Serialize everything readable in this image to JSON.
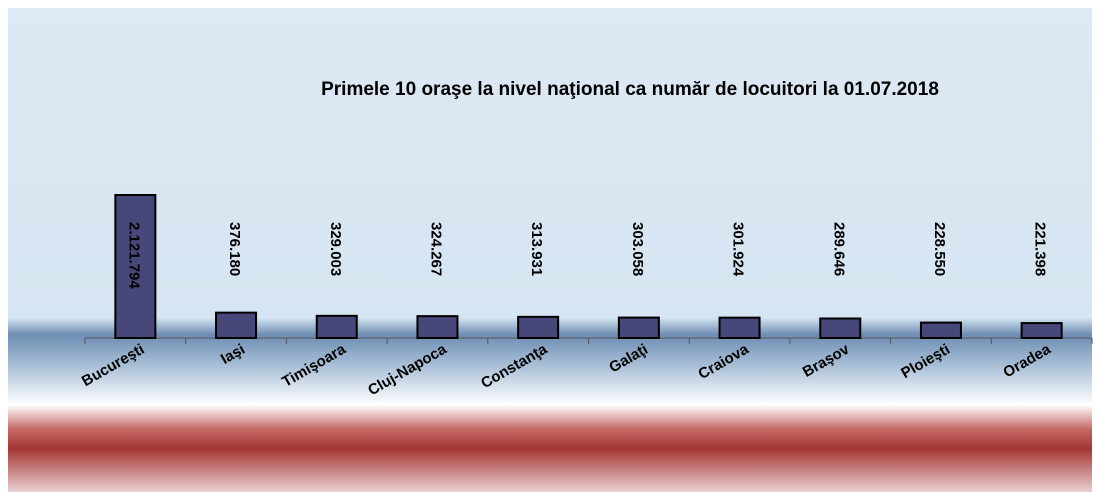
{
  "chart_data": {
    "type": "bar",
    "title": "Primele 10 oraşe la nivel naţional ca număr de locuitori la 01.07.2018",
    "categories": [
      "Bucureşti",
      "Iaşi",
      "Timişoara",
      "Cluj-Napoca",
      "Constanţa",
      "Galaţi",
      "Craiova",
      "Braşov",
      "Ploieşti",
      "Oradea"
    ],
    "values": [
      2121794,
      376180,
      329003,
      324267,
      313931,
      303058,
      301924,
      289646,
      228550,
      221398
    ],
    "value_labels": [
      "2.121.794",
      "376.180",
      "329.003",
      "324.267",
      "313.931",
      "303.058",
      "301.924",
      "289.646",
      "228.550",
      "221.398"
    ],
    "color": "#47477a"
  }
}
